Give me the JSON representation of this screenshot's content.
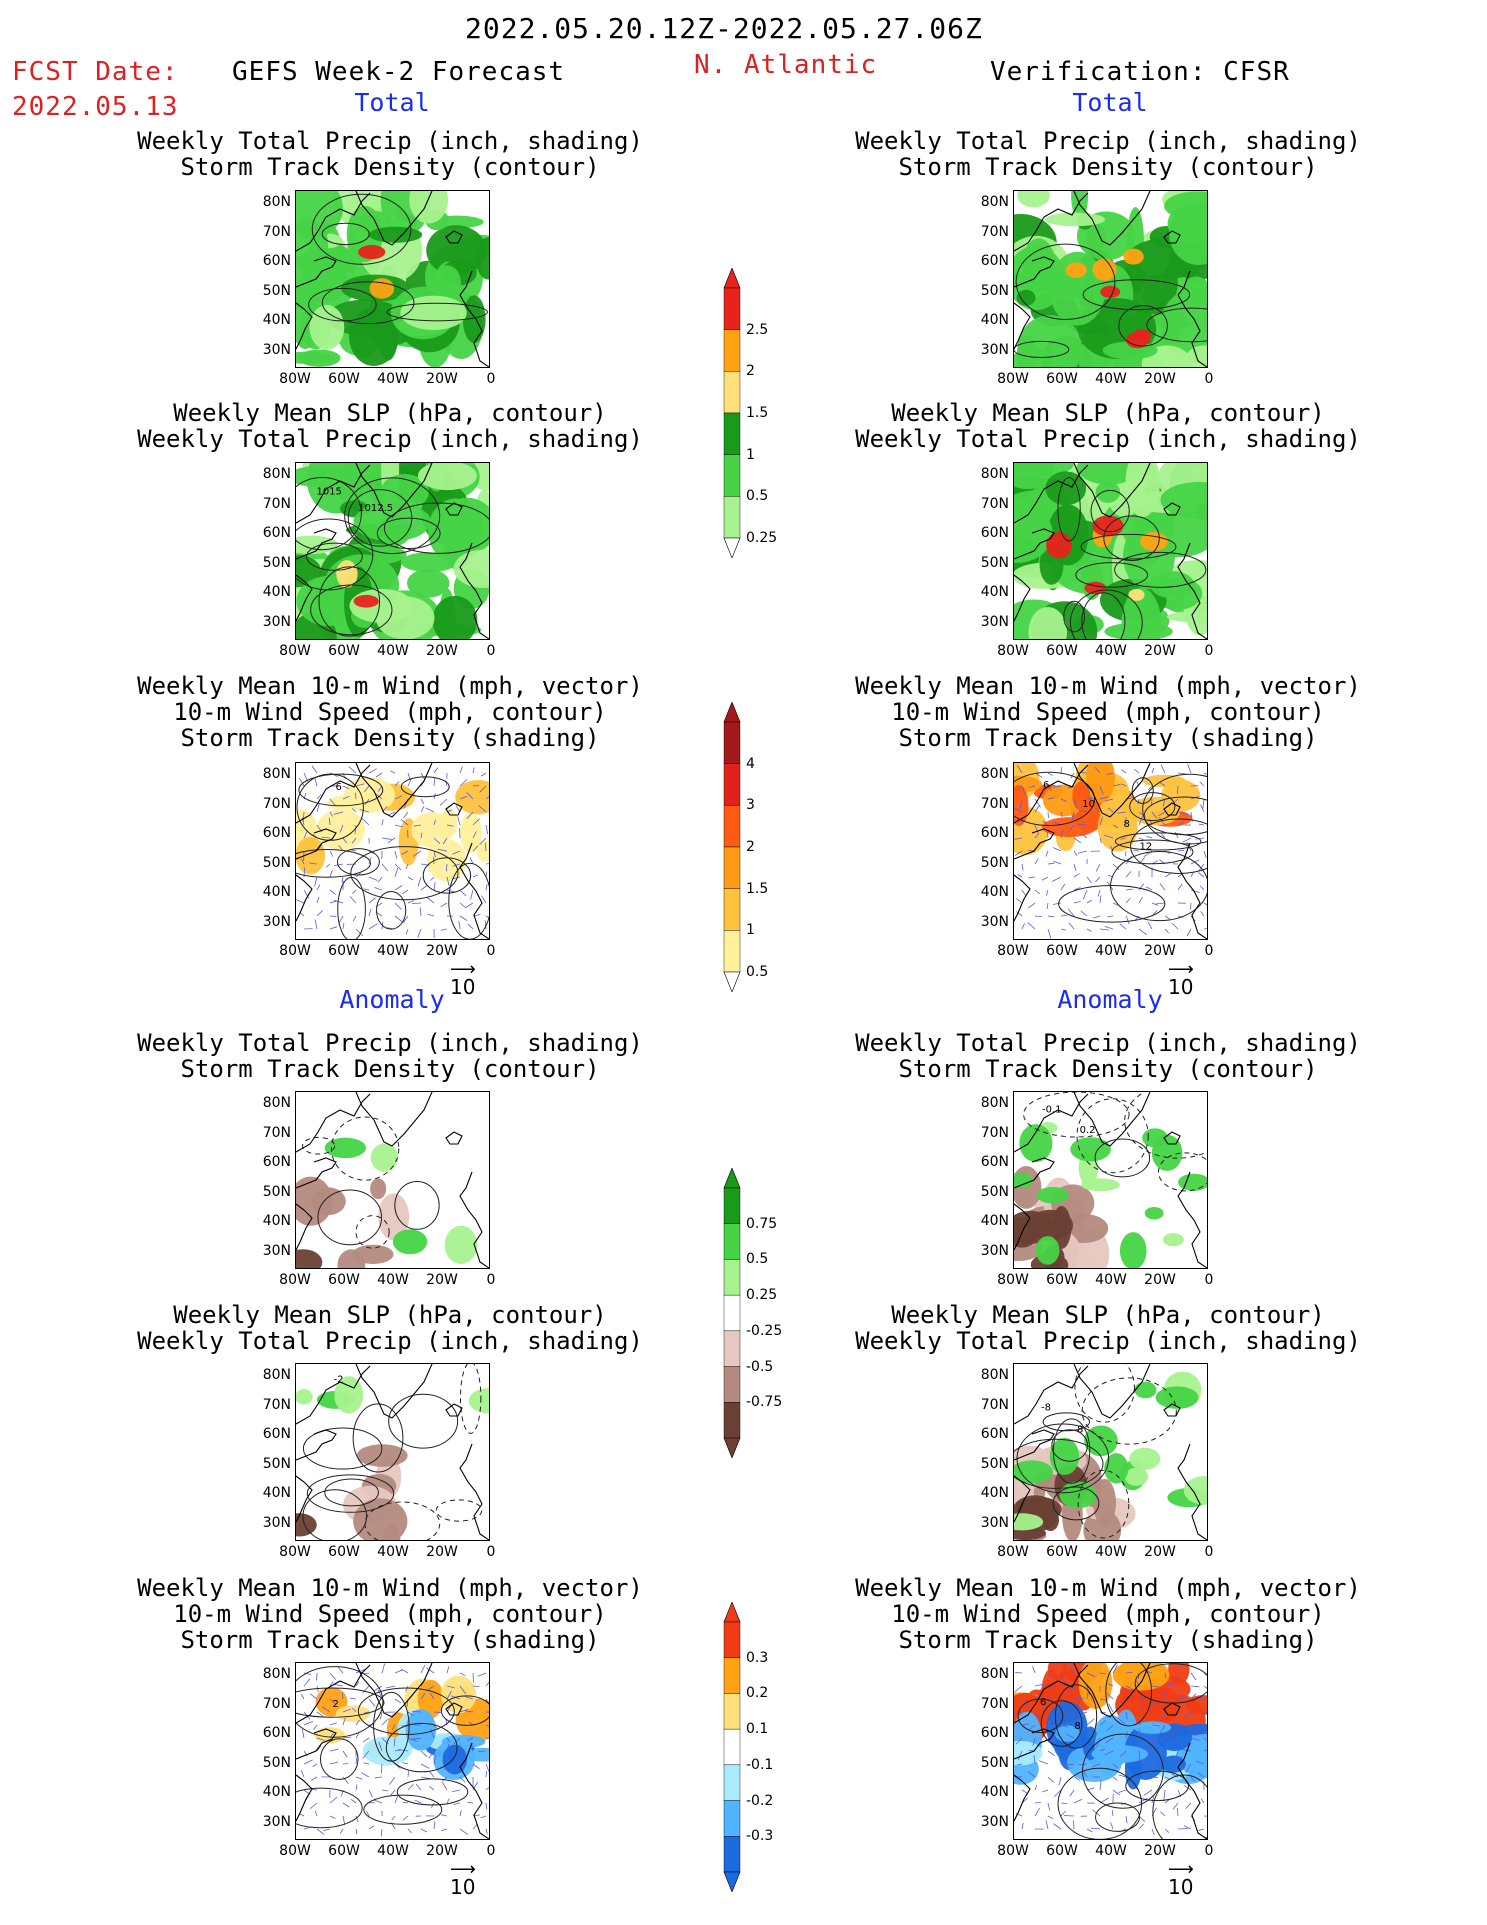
{
  "header": {
    "period": "2022.05.20.12Z-2022.05.27.06Z",
    "fcst_label": "FCST Date:",
    "fcst_date": "2022.05.13",
    "left_title": "GEFS Week-2 Forecast",
    "region": "N. Atlantic",
    "right_title": "Verification: CFSR"
  },
  "sections": {
    "total": "Total",
    "anomaly": "Anomaly"
  },
  "titles": {
    "precip_track": [
      "Weekly Total Precip (inch, shading)",
      "Storm Track Density (contour)"
    ],
    "slp_precip": [
      "Weekly Mean SLP (hPa, contour)",
      "Weekly Total Precip (inch, shading)"
    ],
    "wind": [
      "Weekly Mean 10-m Wind (mph, vector)",
      "10-m Wind Speed (mph, contour)",
      "Storm Track Density (shading)"
    ]
  },
  "axes": {
    "lat": [
      "80N",
      "70N",
      "60N",
      "50N",
      "40N",
      "30N"
    ],
    "lon": [
      "80W",
      "60W",
      "40W",
      "20W",
      "0"
    ]
  },
  "contour_labels": {
    "slp_fcst": [
      "1015",
      "1012.5"
    ],
    "wind_fcst": [
      "6"
    ],
    "wind_obs": [
      "6",
      "10",
      "8",
      "12"
    ],
    "precip_anom_obs": [
      "-0.1",
      "0.2"
    ],
    "slp_anom_fcst": [
      "-2"
    ],
    "slp_anom_obs": [
      "-8",
      "8"
    ],
    "wind_anom_fcst": [
      "2"
    ],
    "wind_anom_obs": [
      "6",
      "8"
    ]
  },
  "vector_ref": "10",
  "colorbars": {
    "precip_total": {
      "ticks": [
        "2.5",
        "2",
        "1.5",
        "1",
        "0.5",
        "0.25"
      ],
      "colors": [
        "#e8231c",
        "#ffa214",
        "#ffe07a",
        "#1a9a1a",
        "#46d446",
        "#a6f28e"
      ]
    },
    "track_total": {
      "ticks": [
        "4",
        "3",
        "2",
        "1.5",
        "1",
        "0.5"
      ],
      "colors": [
        "#a41a1a",
        "#e0201a",
        "#ff5a14",
        "#ff9a14",
        "#ffc23c",
        "#fff09a"
      ]
    },
    "precip_anom": {
      "ticks": [
        "0.75",
        "0.5",
        "0.25",
        "-0.25",
        "-0.5",
        "-0.75"
      ],
      "colors": [
        "#1a9a1a",
        "#46d446",
        "#a6f28e",
        "#ffffff",
        "#e6c8c0",
        "#b48a80",
        "#6a4034"
      ]
    },
    "track_anom": {
      "ticks": [
        "0.3",
        "0.2",
        "0.1",
        "-0.1",
        "-0.2",
        "-0.3"
      ],
      "colors": [
        "#f03c14",
        "#ffa214",
        "#ffe07a",
        "#ffffff",
        "#aaecff",
        "#50b4ff",
        "#1a6ae0"
      ]
    }
  },
  "colors": {
    "accent_red": "#e02020",
    "accent_blue": "#1a2cf0"
  }
}
